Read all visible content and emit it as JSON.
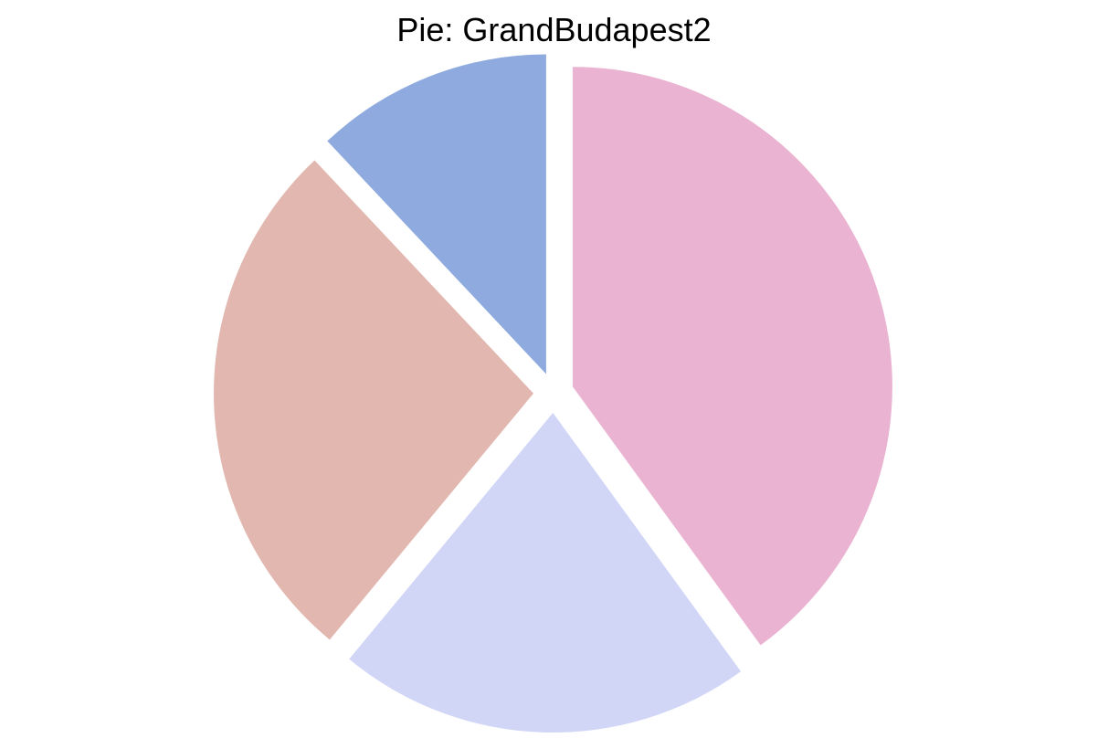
{
  "chart_data": {
    "type": "pie",
    "title": "Pie: GrandBudapest2",
    "start_angle_deg": 90,
    "direction": "clockwise",
    "slices": [
      {
        "value": 40,
        "color": "#EAB3D1",
        "exploded": true
      },
      {
        "value": 21,
        "color": "#D1D6F7",
        "exploded": true
      },
      {
        "value": 27,
        "color": "#E1B7AF",
        "exploded": true
      },
      {
        "value": 12,
        "color": "#8FAADE",
        "exploded": true
      }
    ]
  }
}
